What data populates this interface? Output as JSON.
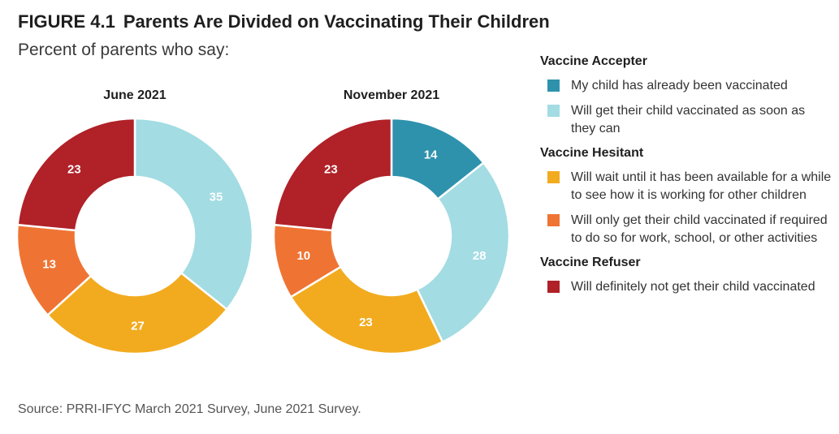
{
  "figure": {
    "number": "FIGURE 4.1",
    "title": "Parents Are Divided on Vaccinating Their Children",
    "subtitle": "Percent of parents who say:",
    "source": "Source: PRRI-IFYC March 2021 Survey, June 2021 Survey."
  },
  "legend": {
    "groups": [
      {
        "title": "Vaccine Accepter",
        "items": [
          {
            "label": "My child has already been vaccinated",
            "color": "#2e92ad"
          },
          {
            "label": "Will get their child vaccinated as soon as they can",
            "color": "#a3dce3"
          }
        ]
      },
      {
        "title": "Vaccine Hesitant",
        "items": [
          {
            "label": "Will wait until it has been available for a while to see how it is working for other children",
            "color": "#f2ab1f"
          },
          {
            "label": "Will only get their child vaccinated if required to do so for work, school, or other activities",
            "color": "#ef7433"
          }
        ]
      },
      {
        "title": "Vaccine Refuser",
        "items": [
          {
            "label": "Will definitely not get their child vaccinated",
            "color": "#b02128"
          }
        ]
      }
    ]
  },
  "chart_data": [
    {
      "type": "pie",
      "title": "June 2021",
      "categories": [
        "My child has already been vaccinated",
        "Will get their child vaccinated as soon as they can",
        "Will wait until it has been available for a while to see how it is working for other children",
        "Will only get their child vaccinated if required to do so for work, school, or other activities",
        "Will definitely not get their child vaccinated"
      ],
      "values": [
        0,
        35,
        27,
        13,
        23
      ],
      "colors": [
        "#2e92ad",
        "#a3dce3",
        "#f2ab1f",
        "#ef7433",
        "#b02128"
      ],
      "donut": true
    },
    {
      "type": "pie",
      "title": "November 2021",
      "categories": [
        "My child has already been vaccinated",
        "Will get their child vaccinated as soon as they can",
        "Will wait until it has been available for a while to see how it is working for other children",
        "Will only get their child vaccinated if required to do so for work, school, or other activities",
        "Will definitely not get their child vaccinated"
      ],
      "values": [
        14,
        28,
        23,
        10,
        23
      ],
      "colors": [
        "#2e92ad",
        "#a3dce3",
        "#f2ab1f",
        "#ef7433",
        "#b02128"
      ],
      "donut": true
    }
  ]
}
